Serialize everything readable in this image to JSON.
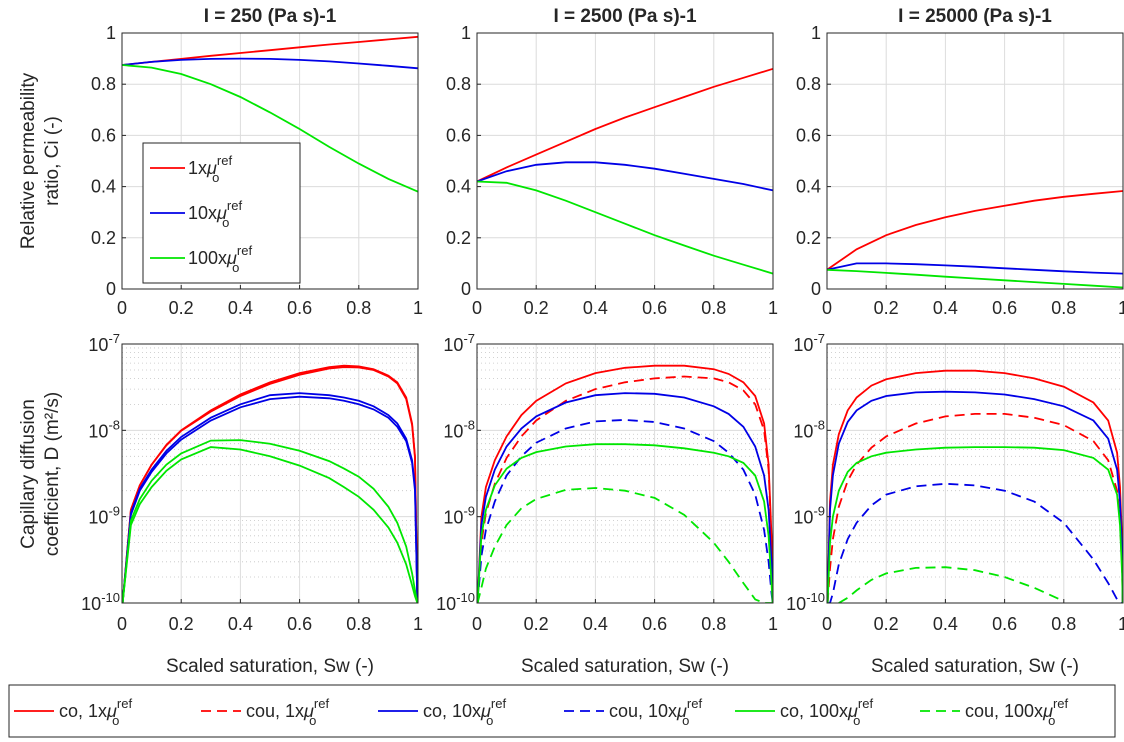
{
  "colors": {
    "red": "#ff0000",
    "blue": "#0000e6",
    "green": "#00e600",
    "grid": "#dcdcdc",
    "minor": "#c4c4c4"
  },
  "figure": {
    "titles": [
      "I = 250 (Pa s)-1",
      "I = 2500 (Pa s)-1",
      "I = 25000 (Pa s)-1"
    ],
    "top_ylabel": [
      "Relative permeability",
      "ratio, Ci (-)"
    ],
    "bottom_ylabel": [
      "Capillary diffusion",
      "coefficient, D (m²/s)"
    ],
    "xlabel": "Scaled saturation, Sw (-)",
    "top_xticks": [
      "0",
      "0.2",
      "0.4",
      "0.6",
      "0.8",
      "1"
    ],
    "top_yticks": [
      "0",
      "0.2",
      "0.4",
      "0.6",
      "0.8",
      "1"
    ],
    "bottom_yticks": [
      "10^-10",
      "10^-9",
      "10^-8",
      "10^-7"
    ]
  },
  "top_legend": [
    "1xμ_o^ref",
    "10xμ_o^ref",
    "100xμ_o^ref"
  ],
  "bottom_legend": [
    "co, 1xμ_o^ref",
    "cou, 1xμ_o^ref",
    "co, 10xμ_o^ref",
    "cou, 10xμ_o^ref",
    "co, 100xμ_o^ref",
    "cou, 100xμ_o^ref"
  ],
  "chart_data": [
    {
      "type": "line",
      "title": "I = 250 (Pa s)-1",
      "xlabel": "",
      "ylabel": "Relative permeability ratio, Ci (-)",
      "xlim": [
        0,
        1
      ],
      "ylim": [
        0,
        1
      ],
      "grid": true,
      "legend": "left",
      "x": [
        0,
        0.1,
        0.2,
        0.3,
        0.4,
        0.5,
        0.6,
        0.7,
        0.8,
        0.9,
        1
      ],
      "series": [
        {
          "name": "1xμ_o^ref",
          "color": "#ff0000",
          "values": [
            0.875,
            0.887,
            0.899,
            0.911,
            0.922,
            0.933,
            0.944,
            0.955,
            0.965,
            0.975,
            0.985
          ]
        },
        {
          "name": "10xμ_o^ref",
          "color": "#0000e6",
          "values": [
            0.875,
            0.887,
            0.895,
            0.899,
            0.9,
            0.899,
            0.895,
            0.889,
            0.881,
            0.872,
            0.862
          ]
        },
        {
          "name": "100xμ_o^ref",
          "color": "#00e600",
          "values": [
            0.875,
            0.865,
            0.84,
            0.8,
            0.75,
            0.69,
            0.625,
            0.555,
            0.49,
            0.43,
            0.38
          ]
        }
      ]
    },
    {
      "type": "line",
      "title": "I = 2500 (Pa s)-1",
      "xlim": [
        0,
        1
      ],
      "ylim": [
        0,
        1
      ],
      "grid": true,
      "x": [
        0,
        0.1,
        0.2,
        0.3,
        0.4,
        0.5,
        0.6,
        0.7,
        0.8,
        0.9,
        1
      ],
      "series": [
        {
          "name": "1xμ_o^ref",
          "color": "#ff0000",
          "values": [
            0.42,
            0.475,
            0.525,
            0.575,
            0.625,
            0.67,
            0.71,
            0.75,
            0.79,
            0.825,
            0.86
          ]
        },
        {
          "name": "10xμ_o^ref",
          "color": "#0000e6",
          "values": [
            0.42,
            0.46,
            0.485,
            0.495,
            0.495,
            0.485,
            0.47,
            0.45,
            0.43,
            0.41,
            0.385
          ]
        },
        {
          "name": "100xμ_o^ref",
          "color": "#00e600",
          "values": [
            0.42,
            0.415,
            0.385,
            0.345,
            0.3,
            0.255,
            0.21,
            0.17,
            0.13,
            0.095,
            0.06
          ]
        }
      ]
    },
    {
      "type": "line",
      "title": "I = 25000 (Pa s)-1",
      "xlim": [
        0,
        1
      ],
      "ylim": [
        0,
        1
      ],
      "grid": true,
      "x": [
        0,
        0.1,
        0.2,
        0.3,
        0.4,
        0.5,
        0.6,
        0.7,
        0.8,
        0.9,
        1
      ],
      "series": [
        {
          "name": "1xμ_o^ref",
          "color": "#ff0000",
          "values": [
            0.075,
            0.155,
            0.21,
            0.25,
            0.28,
            0.305,
            0.325,
            0.345,
            0.36,
            0.372,
            0.383
          ]
        },
        {
          "name": "10xμ_o^ref",
          "color": "#0000e6",
          "values": [
            0.075,
            0.1,
            0.1,
            0.097,
            0.092,
            0.087,
            0.081,
            0.075,
            0.069,
            0.064,
            0.06
          ]
        },
        {
          "name": "100xμ_o^ref",
          "color": "#00e600",
          "values": [
            0.075,
            0.07,
            0.063,
            0.056,
            0.048,
            0.041,
            0.034,
            0.027,
            0.02,
            0.013,
            0.006
          ]
        }
      ]
    },
    {
      "type": "line",
      "xlabel": "Scaled saturation, Sw (-)",
      "ylabel": "Capillary diffusion coefficient, D (m^2/s)",
      "xlim": [
        0,
        1
      ],
      "ylim": [
        1e-10,
        1e-07
      ],
      "yscale": "log",
      "grid": true,
      "x": [
        0.002,
        0.03,
        0.06,
        0.1,
        0.15,
        0.2,
        0.3,
        0.4,
        0.5,
        0.6,
        0.7,
        0.75,
        0.8,
        0.85,
        0.9,
        0.93,
        0.96,
        0.98,
        0.99,
        0.998
      ],
      "series": [
        {
          "name": "co, 1xμ_o^ref",
          "style": "solid",
          "color": "#ff0000",
          "values": [
            1e-10,
            1.2e-09,
            2.3e-09,
            4e-09,
            6.8e-09,
            1e-08,
            1.7e-08,
            2.6e-08,
            3.6e-08,
            4.6e-08,
            5.4e-08,
            5.6e-08,
            5.5e-08,
            5.1e-08,
            4.3e-08,
            3.6e-08,
            2.4e-08,
            1.2e-08,
            5e-09,
            1e-10
          ]
        },
        {
          "name": "cou, 1xμ_o^ref",
          "style": "solid",
          "color": "#ff0000",
          "values": [
            1e-10,
            1.2e-09,
            2.3e-09,
            4e-09,
            6.7e-09,
            9.9e-09,
            1.65e-08,
            2.5e-08,
            3.45e-08,
            4.4e-08,
            5.2e-08,
            5.4e-08,
            5.35e-08,
            5e-08,
            4.2e-08,
            3.5e-08,
            2.3e-08,
            1.15e-08,
            4.8e-09,
            1e-10
          ]
        },
        {
          "name": "co, 10xμ_o^ref",
          "style": "solid",
          "color": "#0000e6",
          "values": [
            1e-10,
            1.1e-09,
            2.1e-09,
            3.5e-09,
            5.8e-09,
            8.4e-09,
            1.4e-08,
            2e-08,
            2.55e-08,
            2.7e-08,
            2.55e-08,
            2.4e-08,
            2.2e-08,
            1.9e-08,
            1.5e-08,
            1.2e-08,
            8e-09,
            4.5e-09,
            2.2e-09,
            1e-10
          ]
        },
        {
          "name": "cou, 10xμ_o^ref",
          "style": "solid",
          "color": "#0000e6",
          "values": [
            1e-10,
            1.05e-09,
            2e-09,
            3.3e-09,
            5.4e-09,
            7.8e-09,
            1.3e-08,
            1.85e-08,
            2.3e-08,
            2.45e-08,
            2.35e-08,
            2.2e-08,
            2e-08,
            1.75e-08,
            1.4e-08,
            1.1e-08,
            7.5e-09,
            4.2e-09,
            2e-09,
            1e-10
          ]
        },
        {
          "name": "co, 100xμ_o^ref",
          "style": "solid",
          "color": "#00e600",
          "values": [
            1e-10,
            9e-10,
            1.6e-09,
            2.6e-09,
            4e-09,
            5.4e-09,
            7.6e-09,
            7.7e-09,
            7e-09,
            5.8e-09,
            4.4e-09,
            3.6e-09,
            2.9e-09,
            2.1e-09,
            1.3e-09,
            8.5e-10,
            4.5e-10,
            2.2e-10,
            1.4e-10,
            1e-10
          ]
        },
        {
          "name": "cou, 100xμ_o^ref",
          "style": "solid",
          "color": "#00e600",
          "values": [
            1e-10,
            8e-10,
            1.4e-09,
            2.2e-09,
            3.4e-09,
            4.6e-09,
            6.4e-09,
            6e-09,
            5e-09,
            3.9e-09,
            2.8e-09,
            2.2e-09,
            1.7e-09,
            1.2e-09,
            7.5e-10,
            5e-10,
            2.8e-10,
            1.6e-10,
            1.2e-10,
            1e-10
          ]
        }
      ]
    },
    {
      "type": "line",
      "xlabel": "Scaled saturation, Sw (-)",
      "xlim": [
        0,
        1
      ],
      "ylim": [
        1e-10,
        1e-07
      ],
      "yscale": "log",
      "grid": true,
      "x": [
        0.002,
        0.015,
        0.03,
        0.06,
        0.1,
        0.15,
        0.2,
        0.3,
        0.4,
        0.5,
        0.6,
        0.7,
        0.8,
        0.85,
        0.9,
        0.94,
        0.97,
        0.985,
        0.995,
        0.999
      ],
      "series": [
        {
          "name": "co, 1xμ_o^ref",
          "style": "solid",
          "color": "#ff0000",
          "values": [
            1e-10,
            1e-09,
            2.2e-09,
            4.5e-09,
            8.5e-09,
            1.5e-08,
            2.2e-08,
            3.5e-08,
            4.6e-08,
            5.3e-08,
            5.6e-08,
            5.6e-08,
            5.1e-08,
            4.5e-08,
            3.6e-08,
            2.5e-08,
            1.2e-08,
            4e-09,
            6e-10,
            1e-10
          ]
        },
        {
          "name": "cou, 1xμ_o^ref",
          "style": "dashed",
          "color": "#ff0000",
          "values": [
            1e-10,
            5e-10,
            1.1e-09,
            2.4e-09,
            4.8e-09,
            8.5e-09,
            1.3e-08,
            2.2e-08,
            3e-08,
            3.6e-08,
            4e-08,
            4.2e-08,
            4e-08,
            3.6e-08,
            2.9e-08,
            2e-08,
            1e-08,
            3.5e-09,
            5e-10,
            1e-10
          ]
        },
        {
          "name": "co, 10xμ_o^ref",
          "style": "solid",
          "color": "#0000e6",
          "values": [
            1e-10,
            8e-10,
            1.7e-09,
            3.5e-09,
            6.5e-09,
            1.05e-08,
            1.45e-08,
            2.1e-08,
            2.55e-08,
            2.7e-08,
            2.65e-08,
            2.4e-08,
            1.9e-08,
            1.55e-08,
            1.1e-08,
            6.5e-09,
            3e-09,
            1.2e-09,
            3e-10,
            1e-10
          ]
        },
        {
          "name": "cou, 10xμ_o^ref",
          "style": "dashed",
          "color": "#0000e6",
          "values": [
            1e-10,
            3.5e-10,
            7e-10,
            1.5e-09,
            3e-09,
            5e-09,
            7.2e-09,
            1.05e-08,
            1.27e-08,
            1.32e-08,
            1.25e-08,
            1.05e-08,
            7.5e-09,
            5.5e-09,
            3.5e-09,
            1.8e-09,
            7e-10,
            3e-10,
            1.3e-10,
            1e-10
          ]
        },
        {
          "name": "co, 100xμ_o^ref",
          "style": "solid",
          "color": "#00e600",
          "values": [
            1e-10,
            6e-10,
            1.2e-09,
            2.3e-09,
            3.6e-09,
            4.8e-09,
            5.6e-09,
            6.5e-09,
            6.9e-09,
            6.9e-09,
            6.7e-09,
            6.2e-09,
            5.5e-09,
            5e-09,
            4.2e-09,
            3e-09,
            1.5e-09,
            6e-10,
            1.7e-10,
            1e-10
          ]
        },
        {
          "name": "cou, 100xμ_o^ref",
          "style": "dashed",
          "color": "#00e600",
          "values": [
            1e-10,
            1.5e-10,
            2.5e-10,
            4.5e-10,
            8e-10,
            1.25e-09,
            1.6e-09,
            2.05e-09,
            2.15e-09,
            2e-09,
            1.65e-09,
            1.05e-09,
            5e-10,
            3e-10,
            1.7e-10,
            1.1e-10,
            1e-10,
            1e-10,
            1e-10,
            1e-10
          ]
        }
      ]
    },
    {
      "type": "line",
      "xlabel": "Scaled saturation, Sw (-)",
      "xlim": [
        0,
        1
      ],
      "ylim": [
        1e-10,
        1e-07
      ],
      "yscale": "log",
      "grid": true,
      "x": [
        0.002,
        0.01,
        0.02,
        0.04,
        0.07,
        0.1,
        0.15,
        0.2,
        0.3,
        0.4,
        0.5,
        0.6,
        0.7,
        0.8,
        0.9,
        0.95,
        0.98,
        0.99,
        0.997,
        0.999
      ],
      "series": [
        {
          "name": "co, 1xμ_o^ref",
          "style": "solid",
          "color": "#ff0000",
          "values": [
            1e-10,
            1.5e-09,
            4e-09,
            9e-09,
            1.7e-08,
            2.4e-08,
            3.3e-08,
            3.9e-08,
            4.6e-08,
            4.9e-08,
            4.9e-08,
            4.6e-08,
            4e-08,
            3.2e-08,
            2.1e-08,
            1.3e-08,
            5.5e-09,
            2.2e-09,
            5e-10,
            1e-10
          ]
        },
        {
          "name": "cou, 1xμ_o^ref",
          "style": "dashed",
          "color": "#ff0000",
          "values": [
            1e-10,
            2.5e-10,
            5.5e-10,
            1.3e-09,
            2.6e-09,
            4e-09,
            6.3e-09,
            8.5e-09,
            1.2e-08,
            1.45e-08,
            1.55e-08,
            1.55e-08,
            1.4e-08,
            1.15e-08,
            7.5e-09,
            4.5e-09,
            2e-09,
            9e-10,
            2.5e-10,
            1e-10
          ]
        },
        {
          "name": "co, 10xμ_o^ref",
          "style": "solid",
          "color": "#0000e6",
          "values": [
            1e-10,
            1.2e-09,
            3e-09,
            7e-09,
            1.25e-08,
            1.7e-08,
            2.2e-08,
            2.5e-08,
            2.75e-08,
            2.8e-08,
            2.75e-08,
            2.6e-08,
            2.3e-08,
            1.9e-08,
            1.3e-08,
            8e-09,
            3.5e-09,
            1.5e-09,
            3.5e-10,
            1e-10
          ]
        },
        {
          "name": "cou, 10xμ_o^ref",
          "style": "dashed",
          "color": "#0000e6",
          "values": [
            1e-10,
            1e-10,
            1.3e-10,
            2.8e-10,
            5.5e-10,
            8.5e-10,
            1.35e-09,
            1.8e-09,
            2.25e-09,
            2.4e-09,
            2.3e-09,
            2e-09,
            1.5e-09,
            8.5e-10,
            3.2e-10,
            1.7e-10,
            1.1e-10,
            1e-10,
            1e-10,
            1e-10
          ]
        },
        {
          "name": "co, 100xμ_o^ref",
          "style": "solid",
          "color": "#00e600",
          "values": [
            1e-10,
            5e-10,
            1e-09,
            2e-09,
            3.3e-09,
            4.2e-09,
            5e-09,
            5.5e-09,
            6e-09,
            6.3e-09,
            6.4e-09,
            6.4e-09,
            6.3e-09,
            5.9e-09,
            4.8e-09,
            3.5e-09,
            1.8e-09,
            8e-10,
            2.2e-10,
            1e-10
          ]
        },
        {
          "name": "cou, 100xμ_o^ref",
          "style": "dashed",
          "color": "#00e600",
          "values": [
            null,
            null,
            null,
            1e-10,
            1.15e-10,
            1.4e-10,
            1.85e-10,
            2.2e-10,
            2.55e-10,
            2.6e-10,
            2.4e-10,
            2e-10,
            1.5e-10,
            1.05e-10,
            null,
            null,
            null,
            null,
            null,
            null
          ]
        }
      ]
    }
  ]
}
